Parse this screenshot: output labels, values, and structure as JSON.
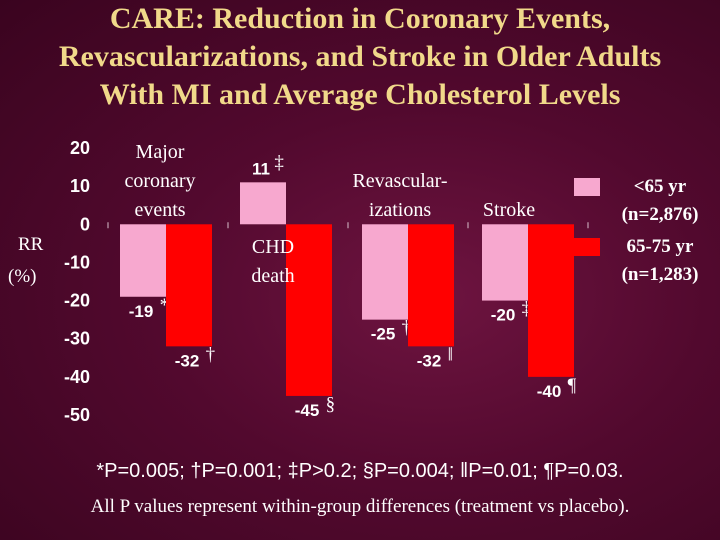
{
  "title": {
    "line1": "CARE: Reduction in Coronary Events,",
    "line2": "Revascularizations, and Stroke in Older Adults",
    "line3": "With MI and Average Cholesterol Levels"
  },
  "chart_data": {
    "type": "bar",
    "ylabel_line1": "RR",
    "ylabel_line2": "(%)",
    "ylim": [
      -50,
      20
    ],
    "yticks": [
      20,
      10,
      0,
      -10,
      -20,
      -30,
      -40,
      -50
    ],
    "categories": [
      {
        "lines": [
          "Major",
          "coronary",
          "events"
        ]
      },
      {
        "lines": [
          "CHD",
          "death"
        ]
      },
      {
        "lines": [
          "Revascular-",
          "izations"
        ]
      },
      {
        "lines": [
          "Stroke"
        ]
      }
    ],
    "series": [
      {
        "name": "<65 yr (n=2,876)",
        "color": "#f7a8cf",
        "values": [
          -19,
          11,
          -25,
          -20
        ],
        "labels": [
          "-19",
          "11",
          "-25",
          "-20"
        ],
        "symbols": [
          "*",
          "‡",
          "†",
          "‡"
        ]
      },
      {
        "name": "65-75 yr (n=1,283)",
        "color": "#ff0000",
        "values": [
          -32,
          -45,
          -32,
          -40
        ],
        "labels": [
          "-32",
          "-45",
          "-32",
          "-40"
        ],
        "symbols": [
          "†",
          "§",
          "‖",
          "¶"
        ]
      }
    ],
    "legend": [
      {
        "line1": "<65 yr",
        "line2": "(n=2,876)",
        "color": "#f7a8cf"
      },
      {
        "line1": "65-75 yr",
        "line2": "(n=1,283)",
        "color": "#ff0000"
      }
    ]
  },
  "footnotes": {
    "p1": "*P=0.005; ",
    "p2": "†P=0.001; ",
    "p3": "‡P>0.2; ",
    "p4": "§P=0.004; ",
    "p5": "‖P=0.01; ",
    "p6": "¶P=0.03.",
    "line2": "All P values represent within-group differences (treatment vs placebo)."
  }
}
